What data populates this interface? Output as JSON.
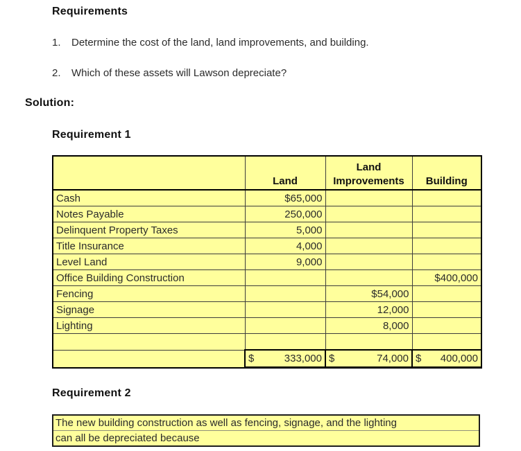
{
  "requirements": {
    "heading": "Requirements",
    "items": [
      {
        "number": "1.",
        "text": "Determine the cost of the land, land improvements, and building."
      },
      {
        "number": "2.",
        "text": "Which of these assets will Lawson depreciate?"
      }
    ]
  },
  "solution_label": "Solution:",
  "requirement1": {
    "heading": "Requirement 1",
    "table": {
      "columns": {
        "label": "",
        "land": "Land",
        "improvements": "Land Improvements",
        "building": "Building"
      },
      "rows": [
        {
          "label": "Cash",
          "land": "$65,000",
          "improvements": "",
          "building": ""
        },
        {
          "label": "Notes Payable",
          "land": "250,000",
          "improvements": "",
          "building": ""
        },
        {
          "label": "Delinquent Property Taxes",
          "land": "5,000",
          "improvements": "",
          "building": ""
        },
        {
          "label": "Title Insurance",
          "land": "4,000",
          "improvements": "",
          "building": ""
        },
        {
          "label": "Level Land",
          "land": "9,000",
          "improvements": "",
          "building": ""
        },
        {
          "label": "Office Building Construction",
          "land": "",
          "improvements": "",
          "building": "$400,000"
        },
        {
          "label": "Fencing",
          "land": "",
          "improvements": "$54,000",
          "building": ""
        },
        {
          "label": "Signage",
          "land": "",
          "improvements": "12,000",
          "building": ""
        },
        {
          "label": "Lighting",
          "land": "",
          "improvements": "8,000",
          "building": ""
        },
        {
          "label": "",
          "land": "",
          "improvements": "",
          "building": ""
        }
      ],
      "totals": {
        "currency_symbol": "$",
        "land": "333,000",
        "improvements": "74,000",
        "building": "400,000"
      }
    }
  },
  "requirement2": {
    "heading": "Requirement 2",
    "lines": [
      "The new building construction as well as fencing, signage, and the lighting",
      "can all be depreciated because"
    ]
  },
  "colors": {
    "cell_fill": "#FFFF9C",
    "grid_border": "#3c3c3c",
    "heavy_border": "#000000"
  }
}
